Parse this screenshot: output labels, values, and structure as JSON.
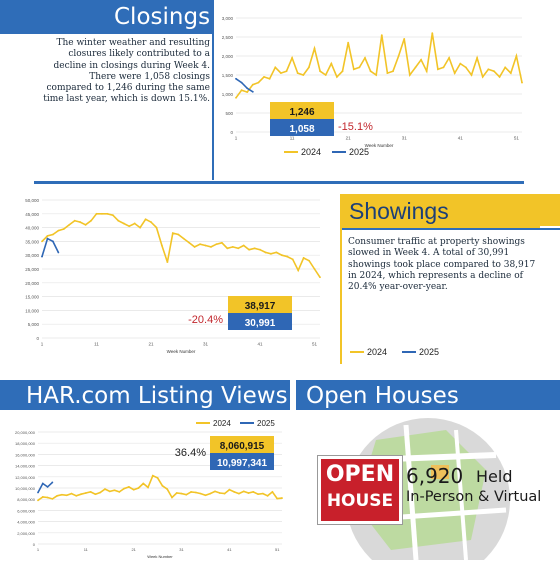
{
  "colors": {
    "y2024": "#f2c428",
    "y2025": "#2f67b5",
    "banner": "#2f6db8",
    "negative": "#c2272d",
    "grid": "#e4e4e4"
  },
  "closings": {
    "title": "Closings",
    "body": "The winter weather and resulting closures likely contributed to a decline in closings during Week 4. There were 1,058 closings compared to 1,246 during the same time last year, which is down 15.1%.",
    "box_2024": "1,246",
    "box_2025": "1,058",
    "change": "-15.1%",
    "legend_2024": "2024",
    "legend_2025": "2025"
  },
  "showings": {
    "title": "Showings",
    "body": "Consumer traffic at property showings slowed in Week 4. A total of 30,991 showings took place compared to 38,917 in 2024, which represents a decline of 20.4% year-over-year.",
    "box_2024": "38,917",
    "box_2025": "30,991",
    "change": "-20.4%",
    "legend_2024": "2024",
    "legend_2025": "2025"
  },
  "views": {
    "title": "HAR.com Listing Views",
    "box_2024": "8,060,915",
    "box_2025": "10,997,341",
    "change": "36.4%",
    "legend_2024": "2024",
    "legend_2025": "2025"
  },
  "open_houses": {
    "title": "Open Houses",
    "sign_line1": "OPEN",
    "sign_line2": "HOUSE",
    "count": "6,920",
    "held": "Held",
    "detail": "In-Person & Virtual"
  },
  "chart_data": [
    {
      "type": "line",
      "xlabel": "Week Number",
      "ylim": [
        0,
        3000
      ],
      "yticks": [
        "0",
        "500",
        "1,000",
        "1,500",
        "2,000",
        "2,500",
        "3,000"
      ],
      "xticks": [
        "1",
        "11",
        "21",
        "31",
        "41",
        "51"
      ],
      "series": [
        {
          "name": "2024",
          "x": [
            1,
            2,
            3,
            4,
            5,
            6,
            7,
            8,
            9,
            10,
            11,
            12,
            13,
            14,
            15,
            16,
            17,
            18,
            19,
            20,
            21,
            22,
            23,
            24,
            25,
            26,
            27,
            28,
            29,
            30,
            31,
            32,
            33,
            34,
            35,
            36,
            37,
            38,
            39,
            40,
            41,
            42,
            43,
            44,
            45,
            46,
            47,
            48,
            49,
            50,
            51,
            52
          ],
          "values": [
            900,
            1100,
            1050,
            1246,
            1300,
            1450,
            1400,
            1700,
            1550,
            1600,
            1950,
            1550,
            1500,
            1700,
            2200,
            1600,
            1500,
            1800,
            1450,
            1600,
            2350,
            1650,
            1700,
            1950,
            1600,
            1500,
            2550,
            1550,
            1600,
            2000,
            2450,
            1500,
            1700,
            1900,
            1600,
            2600,
            1650,
            1700,
            1950,
            1550,
            1800,
            1700,
            1500,
            1950,
            1450,
            1650,
            1600,
            1450,
            1700,
            1550,
            2000,
            1300
          ]
        },
        {
          "name": "2025",
          "x": [
            1,
            2,
            3,
            4
          ],
          "values": [
            1400,
            1300,
            1150,
            1058
          ]
        }
      ]
    },
    {
      "type": "line",
      "xlabel": "Week Number",
      "ylim": [
        0,
        50000
      ],
      "yticks": [
        "0",
        "5,000",
        "10,000",
        "15,000",
        "20,000",
        "25,000",
        "30,000",
        "35,000",
        "40,000",
        "45,000",
        "50,000"
      ],
      "xticks": [
        "1",
        "11",
        "21",
        "31",
        "41",
        "51"
      ],
      "series": [
        {
          "name": "2024",
          "x": [
            1,
            2,
            3,
            4,
            5,
            6,
            7,
            8,
            9,
            10,
            11,
            12,
            13,
            14,
            15,
            16,
            17,
            18,
            19,
            20,
            21,
            22,
            23,
            24,
            25,
            26,
            27,
            28,
            29,
            30,
            31,
            32,
            33,
            34,
            35,
            36,
            37,
            38,
            39,
            40,
            41,
            42,
            43,
            44,
            45,
            46,
            47,
            48,
            49,
            50,
            51,
            52
          ],
          "values": [
            35000,
            37000,
            37500,
            38917,
            39500,
            41000,
            42500,
            42000,
            41000,
            42500,
            45000,
            45000,
            45000,
            44500,
            42500,
            41500,
            40500,
            41500,
            40000,
            43000,
            42000,
            40000,
            33500,
            27500,
            38000,
            37500,
            36000,
            34500,
            33000,
            34000,
            33500,
            33000,
            34000,
            34500,
            32500,
            33000,
            32500,
            33500,
            32000,
            32500,
            32000,
            31000,
            30500,
            31000,
            30000,
            29500,
            28500,
            24500,
            29000,
            28000,
            25000,
            22000
          ]
        },
        {
          "name": "2025",
          "x": [
            1,
            2,
            3,
            4
          ],
          "values": [
            29500,
            36000,
            35000,
            30991
          ]
        }
      ]
    },
    {
      "type": "line",
      "xlabel": "Week Number",
      "ylim": [
        0,
        20000000
      ],
      "yticks": [
        "0",
        "2,000,000",
        "4,000,000",
        "6,000,000",
        "8,000,000",
        "10,000,000",
        "12,000,000",
        "14,000,000",
        "16,000,000",
        "18,000,000",
        "20,000,000"
      ],
      "xticks": [
        "1",
        "11",
        "21",
        "31",
        "41",
        "51"
      ],
      "series": [
        {
          "name": "2024",
          "x": [
            1,
            2,
            3,
            4,
            5,
            6,
            7,
            8,
            9,
            10,
            11,
            12,
            13,
            14,
            15,
            16,
            17,
            18,
            19,
            20,
            21,
            22,
            23,
            24,
            25,
            26,
            27,
            28,
            29,
            30,
            31,
            32,
            33,
            34,
            35,
            36,
            37,
            38,
            39,
            40,
            41,
            42,
            43,
            44,
            45,
            46,
            47,
            48,
            49,
            50,
            51,
            52
          ],
          "values": [
            7800000,
            8400000,
            8300000,
            8060915,
            8600000,
            8800000,
            8700000,
            9000000,
            8600000,
            8900000,
            9100000,
            9300000,
            8900000,
            9200000,
            9800000,
            9400000,
            9600000,
            9300000,
            9900000,
            10200000,
            9700000,
            10000000,
            10800000,
            10100000,
            12200000,
            11800000,
            10400000,
            9800000,
            8300000,
            9100000,
            9000000,
            8800000,
            9300000,
            9200000,
            9000000,
            8700000,
            9000000,
            9400000,
            9100000,
            9000000,
            9700000,
            9300000,
            9000000,
            9400000,
            9100000,
            9300000,
            8900000,
            9000000,
            8600000,
            9300000,
            8100000,
            8200000
          ]
        },
        {
          "name": "2025",
          "x": [
            1,
            2,
            3,
            4
          ],
          "values": [
            9200000,
            10800000,
            10200000,
            10997341
          ]
        }
      ]
    }
  ]
}
